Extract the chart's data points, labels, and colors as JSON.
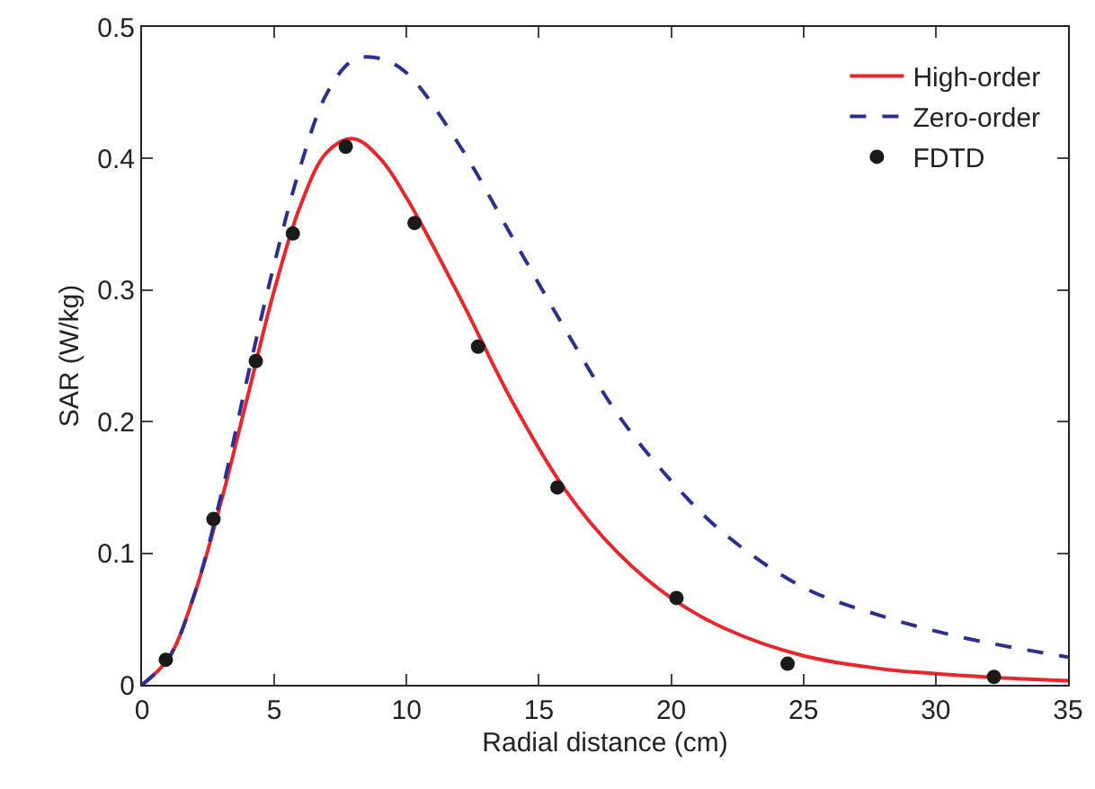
{
  "chart_data": {
    "type": "line",
    "xlabel": "Radial distance (cm)",
    "ylabel": "SAR (W/kg)",
    "xlim": [
      0,
      35
    ],
    "xticks": [
      0,
      5,
      10,
      15,
      20,
      25,
      30,
      35
    ],
    "ylim": [
      0,
      0.5
    ],
    "yticks": [
      0,
      0.1,
      0.2,
      0.3,
      0.4,
      0.5
    ],
    "legend": "top right",
    "series": [
      {
        "name": "High-order",
        "color": "#e8262b",
        "line_style": "solid",
        "marker": "none",
        "x": [
          0,
          1,
          2,
          3,
          4,
          5,
          6,
          7,
          8,
          9,
          10,
          12,
          14,
          16,
          18,
          20,
          22,
          25,
          28,
          31,
          35
        ],
        "values": [
          0,
          0.02,
          0.07,
          0.14,
          0.22,
          0.3,
          0.365,
          0.405,
          0.415,
          0.4,
          0.37,
          0.295,
          0.215,
          0.148,
          0.1,
          0.066,
          0.043,
          0.022,
          0.012,
          0.007,
          0.003
        ]
      },
      {
        "name": "Zero-order",
        "color": "#2b2f8f",
        "line_style": "dashed",
        "marker": "none",
        "x": [
          0,
          1,
          2,
          3,
          4,
          5,
          6,
          7,
          8,
          9,
          10,
          12,
          14,
          16,
          18,
          20,
          22,
          25,
          28,
          31,
          35
        ],
        "values": [
          0,
          0.02,
          0.07,
          0.145,
          0.235,
          0.32,
          0.395,
          0.45,
          0.475,
          0.476,
          0.465,
          0.41,
          0.34,
          0.27,
          0.205,
          0.155,
          0.115,
          0.074,
          0.052,
          0.036,
          0.021
        ]
      },
      {
        "name": "FDTD",
        "color": "#1a1a1a",
        "type": "scatter",
        "marker": "circle",
        "x": [
          0.9,
          2.7,
          4.3,
          5.7,
          7.7,
          10.3,
          12.7,
          15.7,
          20.2,
          24.4,
          32.2
        ],
        "values": [
          0.019,
          0.126,
          0.246,
          0.343,
          0.409,
          0.351,
          0.257,
          0.15,
          0.066,
          0.016,
          0.006
        ]
      }
    ]
  }
}
